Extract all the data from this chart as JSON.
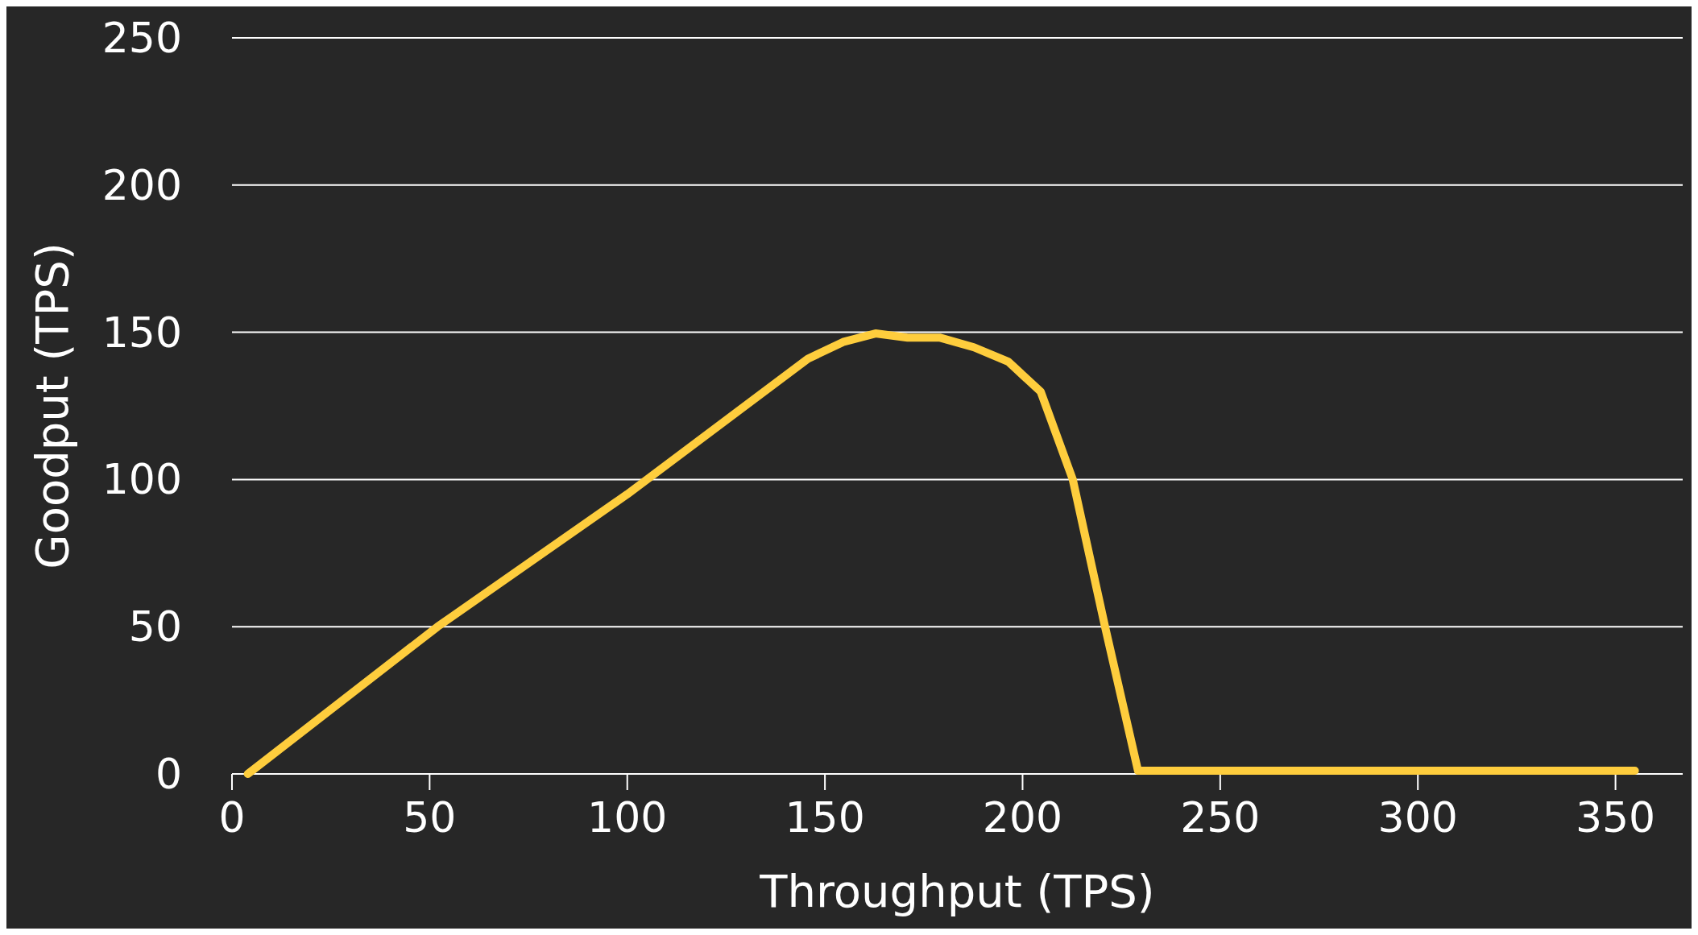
{
  "chart_data": {
    "type": "line",
    "xlabel": "Throughput (TPS)",
    "ylabel": "Goodput (TPS)",
    "xlim": [
      0,
      367
    ],
    "ylim": [
      0,
      250
    ],
    "xticks": [
      0,
      50,
      100,
      150,
      200,
      250,
      300,
      350
    ],
    "yticks": [
      0,
      50,
      100,
      150,
      200,
      250
    ],
    "grid": "y",
    "series": [
      {
        "color": "#fecd3d",
        "x": [
          4,
          52,
          100,
          145.7,
          154.6,
          162.8,
          170.9,
          179,
          187.7,
          196.4,
          204.6,
          212.7,
          220.8,
          229.2,
          354.9
        ],
        "values": [
          0,
          50,
          95,
          141,
          146.7,
          149.6,
          148.2,
          148.2,
          144.9,
          140,
          129.8,
          100,
          50.4,
          1.1,
          1.1
        ]
      }
    ]
  }
}
